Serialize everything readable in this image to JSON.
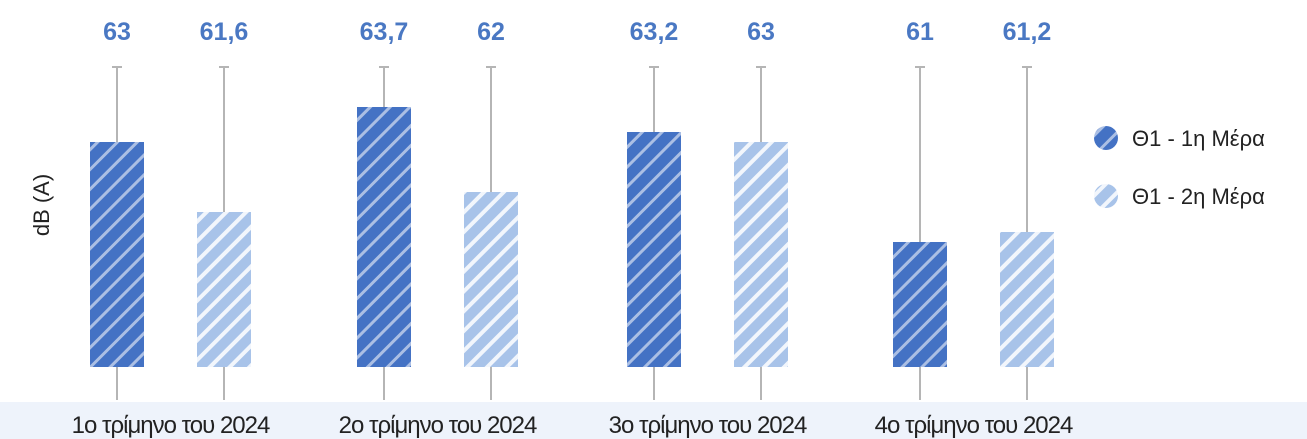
{
  "chart_data": {
    "type": "bar",
    "ylabel": "dB (A)",
    "categories": [
      "1ο τρίμηνο του 2024",
      "2ο τρίμηνο του 2024",
      "3ο τρίμηνο του 2024",
      "4ο τρίμηνο του 2024"
    ],
    "series": [
      {
        "name": "Θ1 - 1η Μέρα",
        "values": [
          63,
          63.7,
          63.2,
          61
        ],
        "labels": [
          "63",
          "63,7",
          "63,2",
          "61"
        ],
        "color": "#4472c4"
      },
      {
        "name": "Θ1 - 2η Μέρα",
        "values": [
          61.6,
          62,
          63,
          61.2
        ],
        "labels": [
          "61,6",
          "62",
          "63",
          "61,2"
        ],
        "color": "#a8c3e9"
      }
    ],
    "error_bars": true,
    "legend": "right",
    "grid": false
  },
  "colors": {
    "stripe": "#ffffff",
    "error_bar": "#b5b5b5",
    "value_label": "#4a78c3",
    "category_band": "#eef3fb"
  }
}
